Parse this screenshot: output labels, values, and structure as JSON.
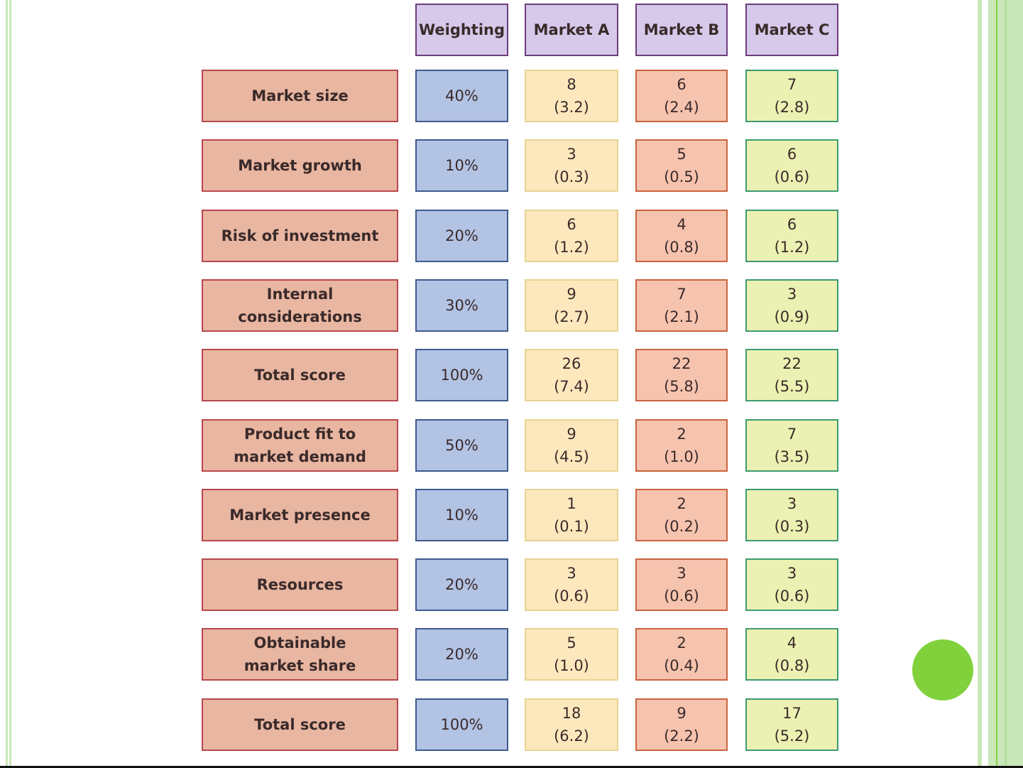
{
  "headers": [
    "Weighting",
    "Market A",
    "Market B",
    "Market C"
  ],
  "rows": [
    {
      "label": "Market size",
      "weight": "40%",
      "a": [
        "8",
        "(3.2)"
      ],
      "b": [
        "6",
        "(2.4)"
      ],
      "c": [
        "7",
        "(2.8)"
      ]
    },
    {
      "label": "Market growth",
      "weight": "10%",
      "a": [
        "3",
        "(0.3)"
      ],
      "b": [
        "5",
        "(0.5)"
      ],
      "c": [
        "6",
        "(0.6)"
      ]
    },
    {
      "label": "Risk of investment",
      "weight": "20%",
      "a": [
        "6",
        "(1.2)"
      ],
      "b": [
        "4",
        "(0.8)"
      ],
      "c": [
        "6",
        "(1.2)"
      ]
    },
    {
      "label": "Internal considerations",
      "weight": "30%",
      "a": [
        "9",
        "(2.7)"
      ],
      "b": [
        "7",
        "(2.1)"
      ],
      "c": [
        "3",
        "(0.9)"
      ]
    },
    {
      "label": "Total score",
      "weight": "100%",
      "a": [
        "26",
        "(7.4)"
      ],
      "b": [
        "22",
        "(5.8)"
      ],
      "c": [
        "22",
        "(5.5)"
      ]
    },
    {
      "label": "Product fit to market demand",
      "weight": "50%",
      "a": [
        "9",
        "(4.5)"
      ],
      "b": [
        "2",
        "(1.0)"
      ],
      "c": [
        "7",
        "(3.5)"
      ]
    },
    {
      "label": "Market presence",
      "weight": "10%",
      "a": [
        "1",
        "(0.1)"
      ],
      "b": [
        "2",
        "(0.2)"
      ],
      "c": [
        "3",
        "(0.3)"
      ]
    },
    {
      "label": "Resources",
      "weight": "20%",
      "a": [
        "3",
        "(0.6)"
      ],
      "b": [
        "3",
        "(0.6)"
      ],
      "c": [
        "3",
        "(0.6)"
      ]
    },
    {
      "label": "Obtainable market share",
      "weight": "20%",
      "a": [
        "5",
        "(1.0)"
      ],
      "b": [
        "2",
        "(0.4)"
      ],
      "c": [
        "4",
        "(0.8)"
      ]
    },
    {
      "label": "Total score",
      "weight": "100%",
      "a": [
        "18",
        "(6.2)"
      ],
      "b": [
        "9",
        "(2.2)"
      ],
      "c": [
        "17",
        "(5.2)"
      ]
    }
  ],
  "colors": {
    "accent": "#80d13c",
    "stripe": "#c9e7b9"
  }
}
